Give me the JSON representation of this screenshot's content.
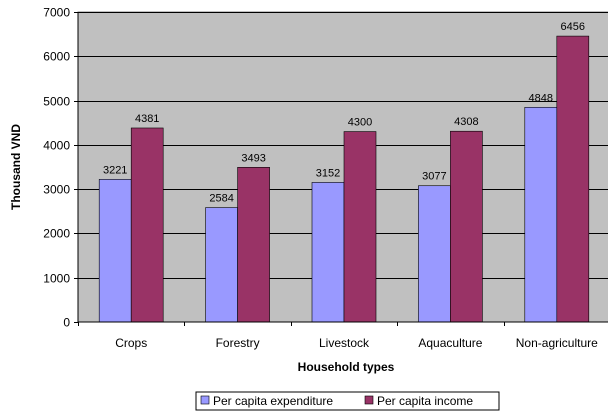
{
  "chart_data": {
    "type": "bar",
    "title": "",
    "xlabel": "Household types",
    "ylabel": "Thousand VND",
    "categories": [
      "Crops",
      "Forestry",
      "Livestock",
      "Aquaculture",
      "Non-agriculture"
    ],
    "series": [
      {
        "name": "Per capita expenditure",
        "values": [
          3221,
          2584,
          3152,
          3077,
          4848
        ],
        "color": "#9999ff"
      },
      {
        "name": "Per capita income",
        "values": [
          4381,
          3493,
          4300,
          4308,
          6456
        ],
        "color": "#993366"
      }
    ],
    "ylim": [
      0,
      7000
    ],
    "yticks": [
      0,
      1000,
      2000,
      3000,
      4000,
      5000,
      6000,
      7000
    ],
    "grid": true,
    "plot_background": "#c0c0c0",
    "legend_position": "bottom"
  }
}
